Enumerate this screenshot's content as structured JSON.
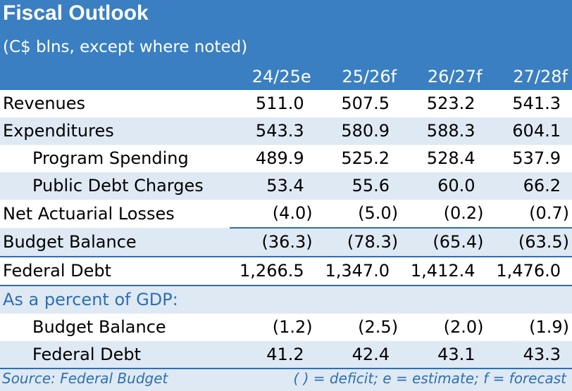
{
  "title": "Fiscal Outlook",
  "subtitle": "(C$ blns, except where noted)",
  "columns": [
    "24/25e",
    "25/26f",
    "26/27f",
    "27/28f"
  ],
  "rows": [
    {
      "label": "Revenues",
      "values": [
        "511.0",
        "507.5",
        "523.2",
        "541.3"
      ]
    },
    {
      "label": "Expenditures",
      "values": [
        "543.3",
        "580.9",
        "588.3",
        "604.1"
      ]
    },
    {
      "label": "Program Spending",
      "values": [
        "489.9",
        "525.2",
        "528.4",
        "537.9"
      ]
    },
    {
      "label": "Public Debt Charges",
      "values": [
        "53.4",
        "55.6",
        "60.0",
        "66.2"
      ]
    },
    {
      "label": "Net Actuarial Losses",
      "values": [
        "(4.0)",
        "(5.0)",
        "(0.2)",
        "(0.7)"
      ]
    },
    {
      "label": "Budget Balance",
      "values": [
        "(36.3)",
        "(78.3)",
        "(65.4)",
        "(63.5)"
      ]
    },
    {
      "label": "Federal Debt",
      "values": [
        "1,266.5",
        "1,347.0",
        "1,412.4",
        "1,476.0"
      ]
    }
  ],
  "gdp_section": {
    "heading": "As a percent of GDP:",
    "rows": [
      {
        "label": "Budget Balance",
        "values": [
          "(1.2)",
          "(2.5)",
          "(2.0)",
          "(1.9)"
        ]
      },
      {
        "label": "Federal Debt",
        "values": [
          "41.2",
          "42.4",
          "43.1",
          "43.3"
        ]
      }
    ]
  },
  "footer": {
    "source": "Source: Federal Budget",
    "note": "( ) = deficit; e = estimate; f = forecast"
  },
  "colors": {
    "header_blue": "#3a7fc1",
    "row_shade": "#dee9f4",
    "accent_text": "#2e6fb0"
  }
}
